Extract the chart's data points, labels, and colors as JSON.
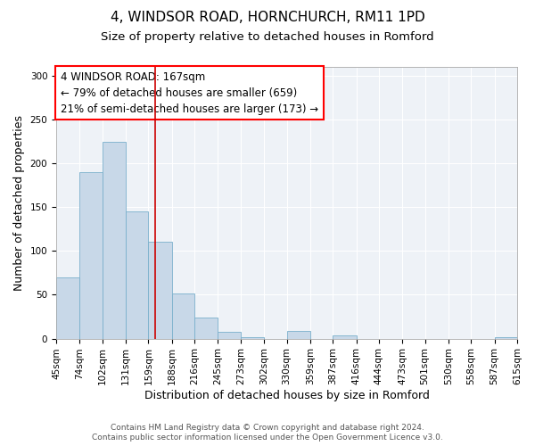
{
  "title": "4, WINDSOR ROAD, HORNCHURCH, RM11 1PD",
  "subtitle": "Size of property relative to detached houses in Romford",
  "xlabel": "Distribution of detached houses by size in Romford",
  "ylabel": "Number of detached properties",
  "bin_edges": [
    45,
    74,
    102,
    131,
    159,
    188,
    216,
    245,
    273,
    302,
    330,
    359,
    387,
    416,
    444,
    473,
    501,
    530,
    558,
    587,
    615
  ],
  "bin_labels": [
    "45sqm",
    "74sqm",
    "102sqm",
    "131sqm",
    "159sqm",
    "188sqm",
    "216sqm",
    "245sqm",
    "273sqm",
    "302sqm",
    "330sqm",
    "359sqm",
    "387sqm",
    "416sqm",
    "444sqm",
    "473sqm",
    "501sqm",
    "530sqm",
    "558sqm",
    "587sqm",
    "615sqm"
  ],
  "counts": [
    70,
    190,
    225,
    145,
    111,
    51,
    24,
    8,
    2,
    0,
    9,
    0,
    4,
    0,
    0,
    0,
    0,
    0,
    0,
    2
  ],
  "bar_color": "#c8d8e8",
  "bar_edge_color": "#7ab0cc",
  "vline_x": 167,
  "vline_color": "#cc0000",
  "ylim": [
    0,
    310
  ],
  "yticks": [
    0,
    50,
    100,
    150,
    200,
    250,
    300
  ],
  "annotation_title": "4 WINDSOR ROAD: 167sqm",
  "annotation_line1": "← 79% of detached houses are smaller (659)",
  "annotation_line2": "21% of semi-detached houses are larger (173) →",
  "footer1": "Contains HM Land Registry data © Crown copyright and database right 2024.",
  "footer2": "Contains public sector information licensed under the Open Government Licence v3.0.",
  "background_color": "#eef2f7",
  "title_fontsize": 11,
  "subtitle_fontsize": 9.5,
  "label_fontsize": 9,
  "tick_fontsize": 7.5,
  "annotation_fontsize": 8.5,
  "footer_fontsize": 6.5
}
